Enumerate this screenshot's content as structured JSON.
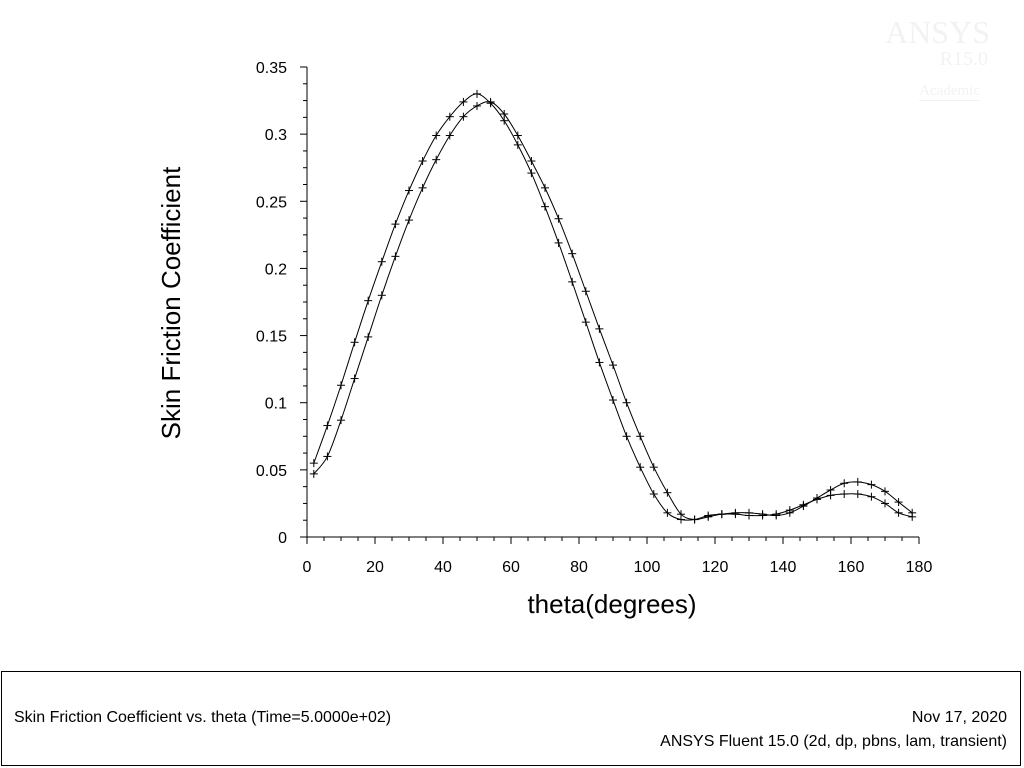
{
  "watermark": {
    "brand": "ANSYS",
    "version": "R15.0",
    "license": "Academic"
  },
  "footer": {
    "title": "Skin Friction Coefficient vs. theta  (Time=5.0000e+02)",
    "date": "Nov 17, 2020",
    "solver": "ANSYS Fluent 15.0 (2d, dp, pbns, lam, transient)"
  },
  "chart_data": {
    "type": "line",
    "title": "",
    "xlabel": "theta(degrees)",
    "ylabel": "Skin Friction Coefficient",
    "xlim": [
      0,
      180
    ],
    "ylim": [
      0,
      0.35
    ],
    "x_ticks": [
      "0",
      "20",
      "40",
      "60",
      "80",
      "100",
      "120",
      "140",
      "160",
      "180"
    ],
    "y_ticks": [
      "0",
      "0.05",
      "0.1",
      "0.15",
      "0.2",
      "0.25",
      "0.3",
      "0.35"
    ],
    "grid": false,
    "legend": "none",
    "marker": "plus",
    "line_color": "#000000",
    "series": [
      {
        "x": [
          2,
          6,
          10,
          14,
          18,
          22,
          26,
          30,
          34,
          38,
          42,
          46,
          50,
          54,
          58,
          62,
          66,
          70,
          74,
          78,
          82,
          86,
          90,
          94,
          98,
          102,
          106,
          110,
          114,
          118,
          122,
          126,
          130,
          134,
          138,
          142,
          146,
          150,
          154,
          158,
          162,
          166,
          170,
          174,
          178
        ],
        "y": [
          0.055,
          0.083,
          0.113,
          0.145,
          0.176,
          0.205,
          0.233,
          0.258,
          0.28,
          0.299,
          0.313,
          0.324,
          0.33,
          0.323,
          0.31,
          0.292,
          0.271,
          0.246,
          0.219,
          0.19,
          0.16,
          0.13,
          0.102,
          0.075,
          0.052,
          0.032,
          0.018,
          0.013,
          0.013,
          0.016,
          0.017,
          0.017,
          0.016,
          0.016,
          0.017,
          0.02,
          0.024,
          0.028,
          0.031,
          0.032,
          0.032,
          0.03,
          0.025,
          0.018,
          0.015
        ]
      },
      {
        "x": [
          2,
          6,
          10,
          14,
          18,
          22,
          26,
          30,
          34,
          38,
          42,
          46,
          50,
          54,
          58,
          62,
          66,
          70,
          74,
          78,
          82,
          86,
          90,
          94,
          98,
          102,
          106,
          110,
          114,
          118,
          122,
          126,
          130,
          134,
          138,
          142,
          146,
          150,
          154,
          158,
          162,
          166,
          170,
          174,
          178
        ],
        "y": [
          0.047,
          0.06,
          0.087,
          0.118,
          0.149,
          0.18,
          0.209,
          0.236,
          0.26,
          0.281,
          0.299,
          0.313,
          0.321,
          0.324,
          0.315,
          0.299,
          0.28,
          0.26,
          0.237,
          0.211,
          0.183,
          0.155,
          0.128,
          0.1,
          0.075,
          0.052,
          0.033,
          0.017,
          0.013,
          0.015,
          0.017,
          0.018,
          0.018,
          0.017,
          0.016,
          0.018,
          0.023,
          0.029,
          0.035,
          0.04,
          0.041,
          0.039,
          0.034,
          0.026,
          0.018
        ]
      }
    ]
  }
}
